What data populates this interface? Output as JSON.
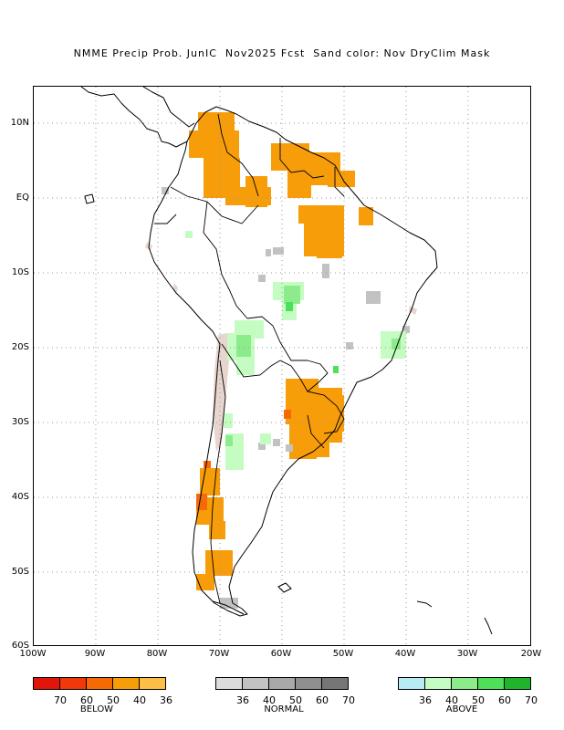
{
  "title": "NMME Precip Prob. JunIC  Nov2025 Fcst  Sand color: Nov DryClim Mask",
  "lat_labels": [
    "10N",
    "EQ",
    "10S",
    "20S",
    "30S",
    "40S",
    "50S",
    "60S"
  ],
  "lon_labels": [
    "100W",
    "90W",
    "80W",
    "70W",
    "60W",
    "50W",
    "40W",
    "30W",
    "20W"
  ],
  "legend": {
    "below": {
      "caption": "BELOW",
      "ticks": [
        "70",
        "60",
        "50",
        "40",
        "36"
      ],
      "colors": [
        "#e1150a",
        "#f0380a",
        "#f66a05",
        "#f89d0a",
        "#fcbe46"
      ]
    },
    "normal": {
      "caption": "NORMAL",
      "ticks": [
        "36",
        "40",
        "50",
        "60",
        "70"
      ],
      "colors": [
        "#dcdcdc",
        "#c2c2c2",
        "#a9a9a9",
        "#8f8f8f",
        "#767676"
      ]
    },
    "above": {
      "caption": "ABOVE",
      "ticks": [
        "36",
        "40",
        "50",
        "60",
        "70"
      ],
      "colors": [
        "#b7ecf4",
        "#c5fcc2",
        "#8cec8c",
        "#4fe05a",
        "#20b42c"
      ]
    }
  },
  "colors": {
    "dry_mask": "#e8d5cf",
    "coast": "#000000",
    "grid": "#999999"
  }
}
